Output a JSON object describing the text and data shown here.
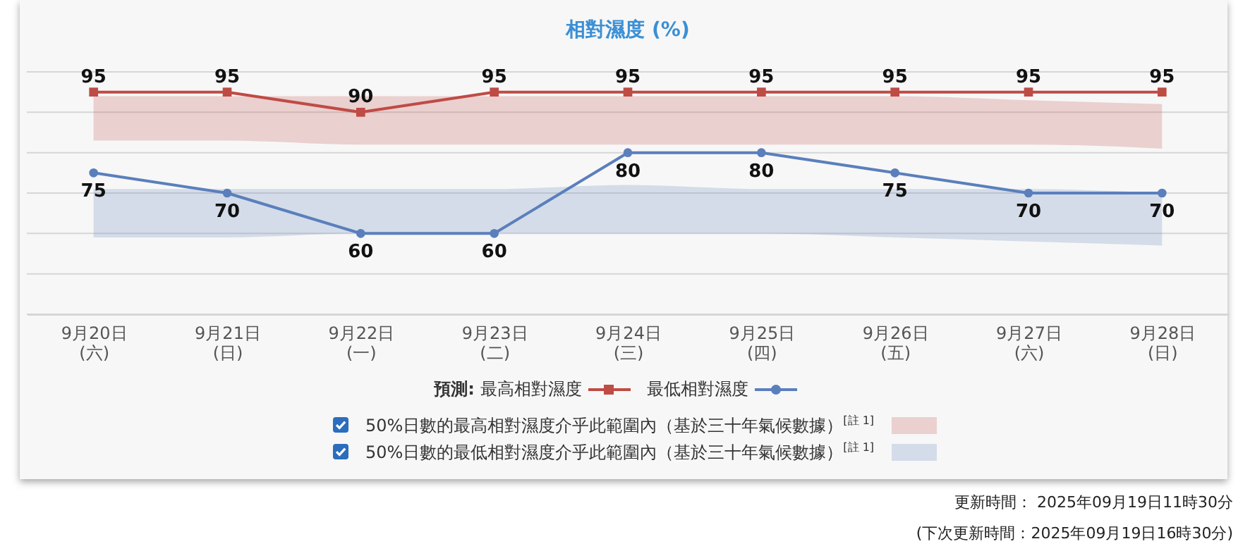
{
  "chart_data": {
    "type": "line",
    "title": "相對濕度 (%)",
    "categories": [
      "9月20日\n(六)",
      "9月21日\n(日)",
      "9月22日\n(一)",
      "9月23日\n(二)",
      "9月24日\n(三)",
      "9月25日\n(四)",
      "9月26日\n(五)",
      "9月27日\n(六)",
      "9月28日\n(日)"
    ],
    "legend_title": "預測:",
    "series": [
      {
        "name": "最高相對濕度",
        "color": "#bf4b45",
        "marker": "square",
        "values": [
          95,
          95,
          90,
          95,
          95,
          95,
          95,
          95,
          95
        ],
        "lower": [
          83,
          83,
          82,
          82,
          82,
          82,
          82,
          82,
          81
        ],
        "upper": [
          94,
          94,
          94,
          94,
          94,
          94,
          94,
          93,
          92
        ]
      },
      {
        "name": "最低相對濕度",
        "color": "#5a7fbc",
        "marker": "circle",
        "values": [
          75,
          70,
          60,
          60,
          80,
          80,
          75,
          70,
          70
        ],
        "lower": [
          59,
          59,
          60,
          60,
          60,
          60,
          59,
          58,
          57
        ],
        "upper": [
          71,
          71,
          71,
          71,
          72,
          71,
          71,
          71,
          70
        ]
      }
    ],
    "ylim": [
      40,
      100
    ],
    "yticks": [
      {
        "value": 40,
        "label": null
      },
      {
        "value": 50,
        "label": null
      },
      {
        "value": 60,
        "label": null
      },
      {
        "value": 70,
        "label": null
      },
      {
        "value": 80,
        "label": null
      },
      {
        "value": 90,
        "label": null
      },
      {
        "value": 100,
        "label": null
      }
    ],
    "tick_labels": "x",
    "grid": "y",
    "data_labels": true,
    "legend": "bottom",
    "annotations": [
      "50%日數的最高相對濕度介乎此範圍內（基於三十年氣候數據）$^{[註 1]}$",
      "50%日數的最低相對濕度介乎此範圍內（基於三十年氣候數據）$^{[註 1]}$",
      "更新時間： 2025年09月19日11時30分",
      "(下次更新時間：2025年09月19日16時30分)"
    ]
  }
}
